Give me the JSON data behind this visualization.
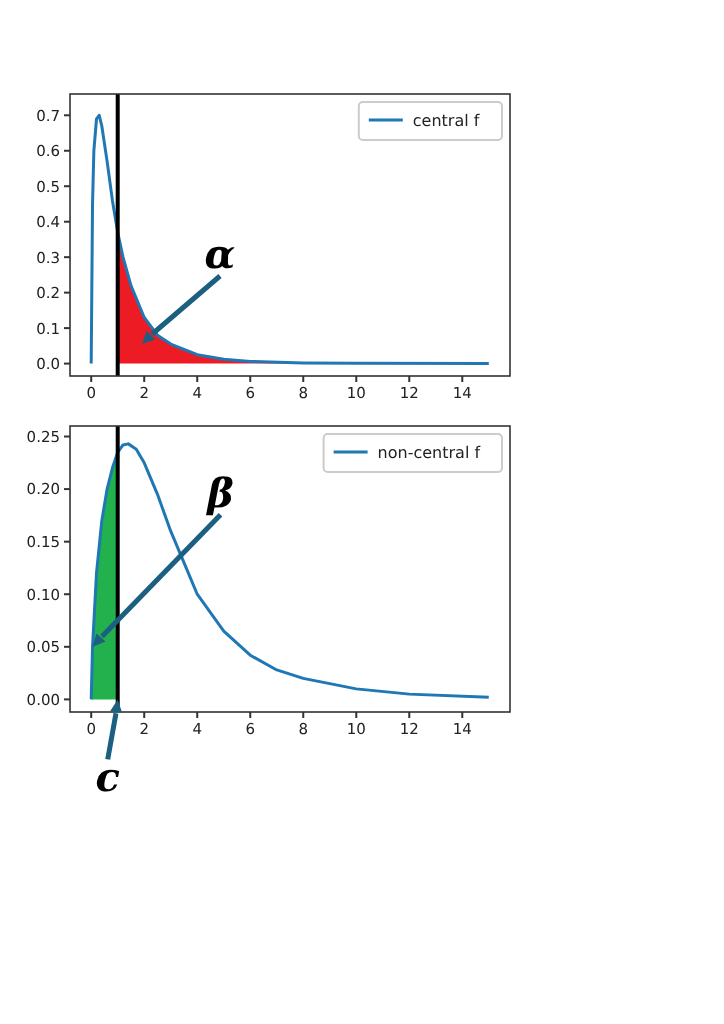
{
  "chart_data": [
    {
      "type": "line",
      "xlim": [
        -0.8,
        15.8
      ],
      "ylim": [
        -0.035,
        0.76
      ],
      "xticks": [
        0,
        2,
        4,
        6,
        8,
        10,
        12,
        14
      ],
      "yticks": [
        {
          "value": 0,
          "label": "0.0"
        },
        {
          "value": 0.1,
          "label": "0.1"
        },
        {
          "value": 0.2,
          "label": "0.2"
        },
        {
          "value": 0.3,
          "label": "0.3"
        },
        {
          "value": 0.4,
          "label": "0.4"
        },
        {
          "value": 0.5,
          "label": "0.5"
        },
        {
          "value": 0.6,
          "label": "0.6"
        },
        {
          "value": 0.7,
          "label": "0.7"
        }
      ],
      "legend": "top right",
      "grid": false,
      "series": [
        {
          "name": "central f",
          "color": "#1f77b4",
          "x": [
            0,
            0.05,
            0.1,
            0.2,
            0.3,
            0.4,
            0.6,
            0.8,
            1,
            1.2,
            1.5,
            2,
            2.5,
            3,
            4,
            5,
            6,
            8,
            10,
            15
          ],
          "values": [
            0,
            0.45,
            0.6,
            0.69,
            0.7,
            0.67,
            0.57,
            0.46,
            0.37,
            0.3,
            0.22,
            0.13,
            0.08,
            0.055,
            0.025,
            0.012,
            0.006,
            0.002,
            0.001,
            0
          ]
        },
        {
          "type": "area",
          "color": "#ed1c24",
          "x": [
            1,
            1.2,
            1.5,
            2,
            2.5,
            3,
            4,
            5,
            6,
            8,
            10,
            15
          ],
          "values": [
            0.37,
            0.3,
            0.22,
            0.13,
            0.08,
            0.055,
            0.025,
            0.012,
            0.006,
            0.002,
            0.001,
            0
          ]
        }
      ],
      "ref_lines": [
        {
          "axis": "x",
          "value": 1,
          "color": "#000000"
        }
      ],
      "annotations": [
        "α"
      ]
    },
    {
      "type": "line",
      "xlim": [
        -0.8,
        15.8
      ],
      "ylim": [
        -0.012,
        0.26
      ],
      "xticks": [
        0,
        2,
        4,
        6,
        8,
        10,
        12,
        14
      ],
      "yticks": [
        {
          "value": 0,
          "label": "0.00"
        },
        {
          "value": 0.05,
          "label": "0.05"
        },
        {
          "value": 0.1,
          "label": "0.10"
        },
        {
          "value": 0.15,
          "label": "0.15"
        },
        {
          "value": 0.2,
          "label": "0.20"
        },
        {
          "value": 0.25,
          "label": "0.25"
        }
      ],
      "legend": "top right",
      "grid": false,
      "series": [
        {
          "name": "non-central f",
          "color": "#1f77b4",
          "x": [
            0,
            0.05,
            0.2,
            0.4,
            0.6,
            0.8,
            1,
            1.2,
            1.4,
            1.7,
            2,
            2.5,
            3,
            3.5,
            4,
            5,
            6,
            7,
            8,
            10,
            12,
            15
          ],
          "values": [
            0,
            0.05,
            0.12,
            0.17,
            0.2,
            0.22,
            0.235,
            0.242,
            0.243,
            0.238,
            0.225,
            0.195,
            0.16,
            0.13,
            0.1,
            0.065,
            0.042,
            0.028,
            0.02,
            0.01,
            0.005,
            0.002
          ]
        },
        {
          "type": "area",
          "color": "#22b14c",
          "x": [
            0,
            0.05,
            0.2,
            0.4,
            0.6,
            0.8,
            1
          ],
          "values": [
            0,
            0.05,
            0.12,
            0.17,
            0.2,
            0.22,
            0.235
          ]
        }
      ],
      "ref_lines": [
        {
          "axis": "x",
          "value": 1,
          "color": "#000000"
        }
      ],
      "annotations": [
        {
          "text": "β",
          "x": 0.05,
          "y": 0.05
        },
        {
          "text": "c",
          "x": 1,
          "y": 0
        }
      ]
    }
  ]
}
